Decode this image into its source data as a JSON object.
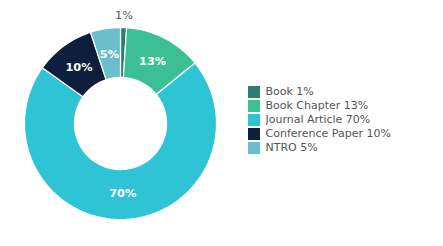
{
  "chart_data": {
    "type": "pie",
    "categories": [
      "Book 1%",
      "Book Chapter 13%",
      "Journal Article 70%",
      "Conference Paper 10%",
      "NTRO 5%"
    ],
    "values": [
      1,
      13,
      70,
      10,
      5
    ],
    "value_labels": [
      "1%",
      "13%",
      "70%",
      "10%",
      "5%"
    ],
    "colors": [
      "#2a7f6f",
      "#3dbf96",
      "#2ec4d6",
      "#0d1f3c",
      "#6bbfcc"
    ],
    "data_labels": true,
    "legend": "right"
  }
}
